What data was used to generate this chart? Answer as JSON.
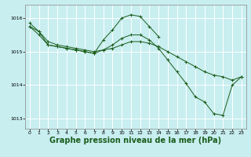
{
  "background_color": "#c8eef0",
  "grid_color": "#ffffff",
  "line_color": "#1a5c1a",
  "xlabel": "Graphe pression niveau de la mer (hPa)",
  "xlabel_fontsize": 7,
  "xlabel_fontweight": "bold",
  "ylim": [
    1012.7,
    1016.4
  ],
  "xlim": [
    -0.5,
    23.5
  ],
  "yticks": [
    1013,
    1014,
    1015,
    1016
  ],
  "xticks": [
    0,
    1,
    2,
    3,
    4,
    5,
    6,
    7,
    8,
    9,
    10,
    11,
    12,
    13,
    14,
    15,
    16,
    17,
    18,
    19,
    20,
    21,
    22,
    23
  ],
  "series1": {
    "x": [
      0,
      1,
      2,
      3,
      4,
      5,
      6,
      7,
      8,
      9,
      10,
      11,
      12,
      13,
      14,
      15,
      16,
      17,
      18,
      19,
      20,
      21,
      22,
      23
    ],
    "y": [
      1015.75,
      1015.6,
      1015.3,
      1015.2,
      1015.15,
      1015.1,
      1015.05,
      1015.0,
      1015.05,
      1015.1,
      1015.2,
      1015.3,
      1015.3,
      1015.25,
      1015.15,
      1015.0,
      1014.85,
      1014.7,
      1014.55,
      1014.4,
      1014.3,
      1014.25,
      1014.15,
      1014.25
    ]
  },
  "series2": {
    "x": [
      0,
      1,
      2,
      3,
      4,
      5,
      6,
      7,
      8,
      9,
      10,
      11,
      12,
      13,
      14,
      15,
      16,
      17,
      18,
      19,
      20,
      21,
      22,
      23
    ],
    "y": [
      1015.75,
      1015.5,
      1015.2,
      1015.15,
      1015.1,
      1015.05,
      1015.0,
      1014.95,
      1015.05,
      1015.2,
      1015.4,
      1015.5,
      1015.5,
      1015.35,
      1015.1,
      1014.75,
      1014.4,
      1014.05,
      1013.65,
      1013.5,
      1013.15,
      1013.1,
      1014.0,
      1014.25
    ]
  },
  "series3": {
    "x": [
      0,
      1,
      2,
      3,
      4,
      5,
      6,
      7,
      8,
      9,
      10,
      11,
      12,
      13,
      14
    ],
    "y": [
      1015.85,
      1015.6,
      1015.2,
      1015.15,
      1015.1,
      1015.05,
      1015.0,
      1014.95,
      1015.35,
      1015.65,
      1016.0,
      1016.1,
      1016.05,
      1015.75,
      1015.45
    ]
  }
}
